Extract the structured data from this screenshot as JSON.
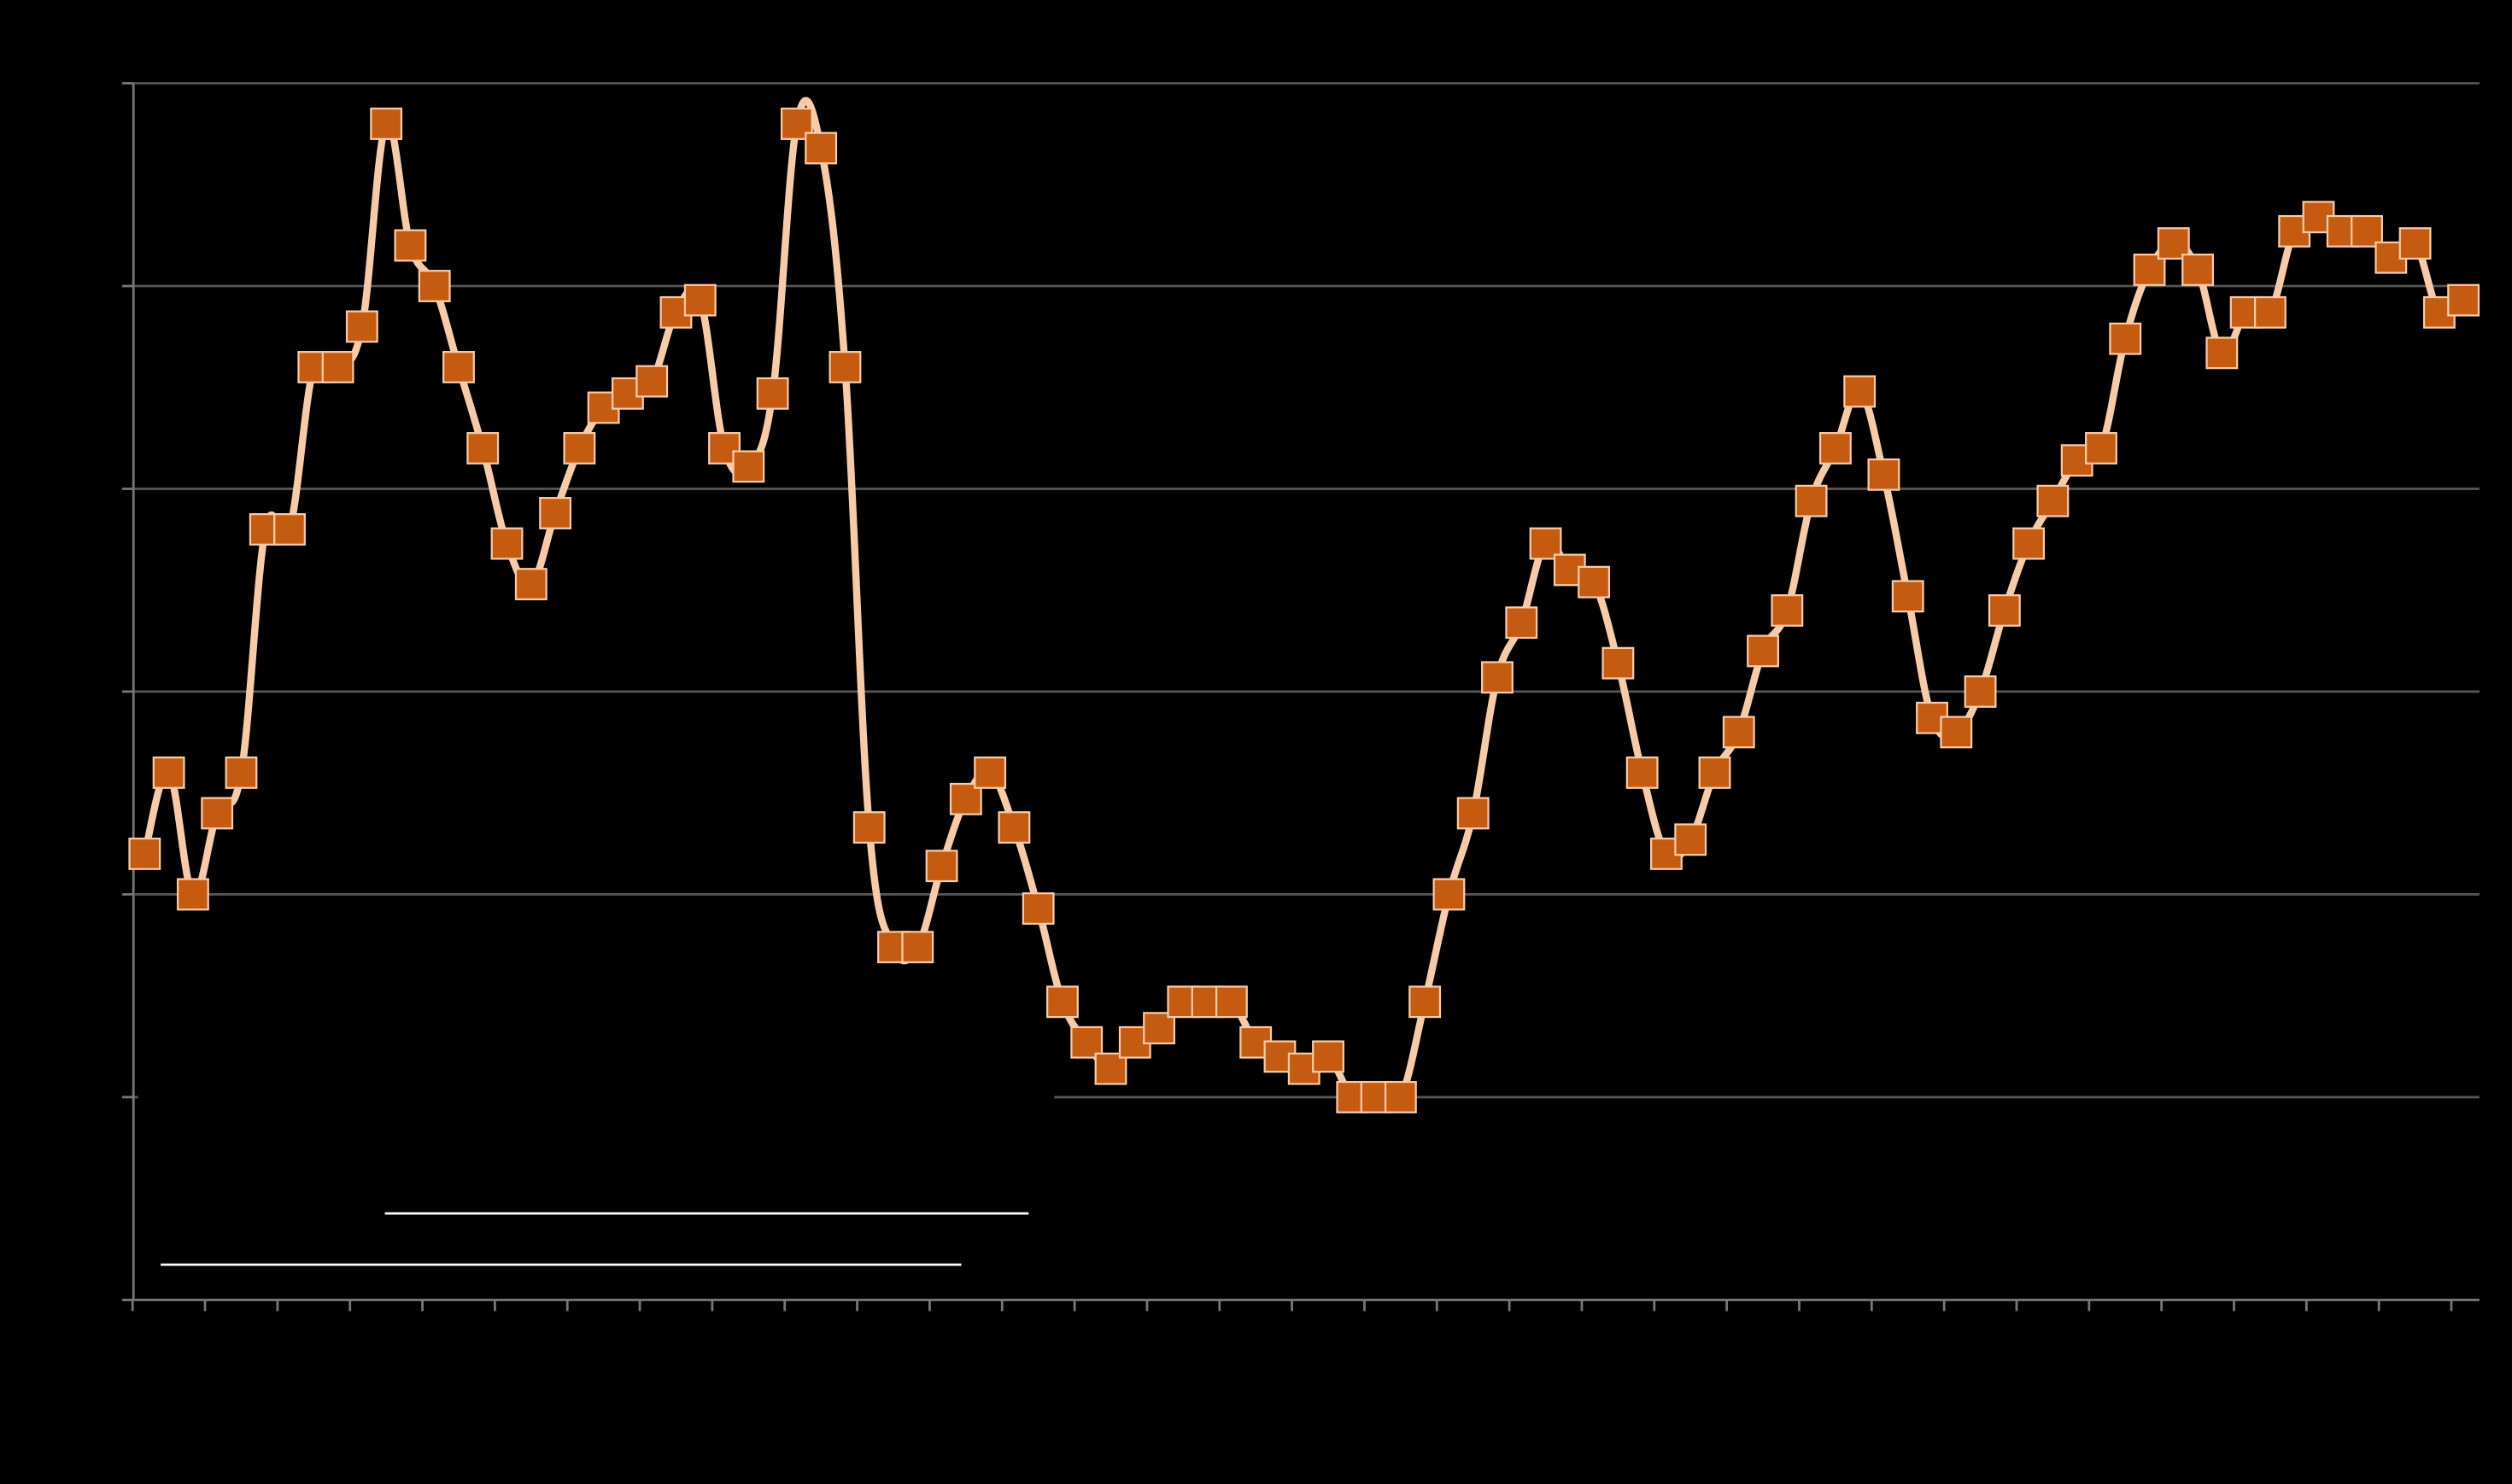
{
  "chart_data": {
    "type": "line",
    "series": [
      {
        "color": "#c55a11",
        "line_color": "#f8cba8",
        "marker": "square",
        "values": [
          2.2,
          2.6,
          2.0,
          2.4,
          2.6,
          3.8,
          3.8,
          4.6,
          4.6,
          4.8,
          5.8,
          5.2,
          5.0,
          4.6,
          4.2,
          3.73,
          3.53,
          3.88,
          4.2,
          4.4,
          4.47,
          4.53,
          4.87,
          4.93,
          4.2,
          4.11,
          4.47,
          5.8,
          5.68,
          4.6,
          2.33,
          1.74,
          1.74,
          2.14,
          2.47,
          2.6,
          2.33,
          1.93,
          1.47,
          1.27,
          1.14,
          1.27,
          1.34,
          1.47,
          1.47,
          1.47,
          1.27,
          1.2,
          1.14,
          1.2,
          1.0,
          1.0,
          1.0,
          1.47,
          2.0,
          2.4,
          3.07,
          3.34,
          3.73,
          3.6,
          3.54,
          3.14,
          2.6,
          2.2,
          2.27,
          2.6,
          2.8,
          3.2,
          3.4,
          3.94,
          4.2,
          4.48,
          4.07,
          3.47,
          2.87,
          2.8,
          3.0,
          3.4,
          3.73,
          3.94,
          4.14,
          4.2,
          4.74,
          5.08,
          5.21,
          5.08,
          4.67,
          4.87,
          4.87,
          5.27,
          5.34,
          5.27,
          5.27,
          5.14,
          5.21,
          4.87,
          4.93
        ]
      }
    ],
    "ylim": [
      0,
      6
    ],
    "yticks": [
      0,
      1,
      2,
      3,
      4,
      5,
      6
    ],
    "grid": true
  }
}
